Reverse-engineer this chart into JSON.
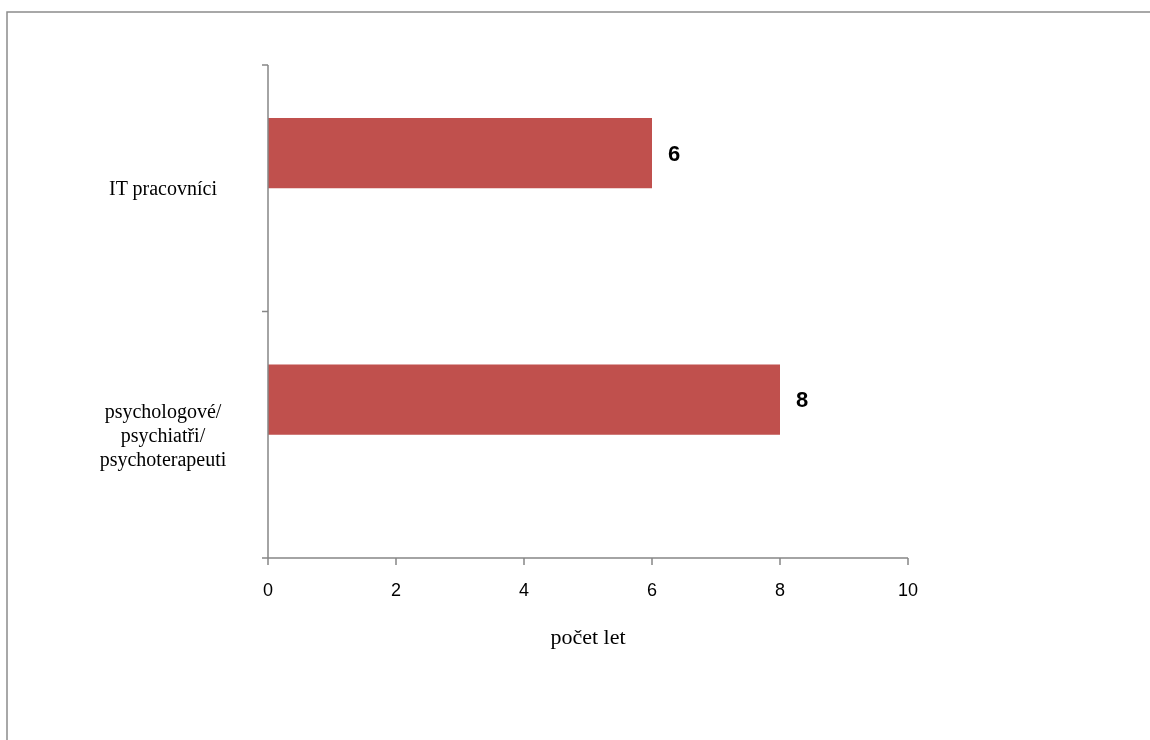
{
  "chart_data": {
    "type": "bar",
    "orientation": "horizontal",
    "xlabel": "počet let",
    "categories": [
      "IT pracovníci",
      "psychologové/ psychiatři/ psychoterapeuti"
    ],
    "values": [
      6,
      8
    ],
    "color": "#c0504d",
    "xlim": [
      0,
      10
    ],
    "xticks": [
      0,
      2,
      4,
      6,
      8,
      10
    ],
    "data_labels": true
  }
}
